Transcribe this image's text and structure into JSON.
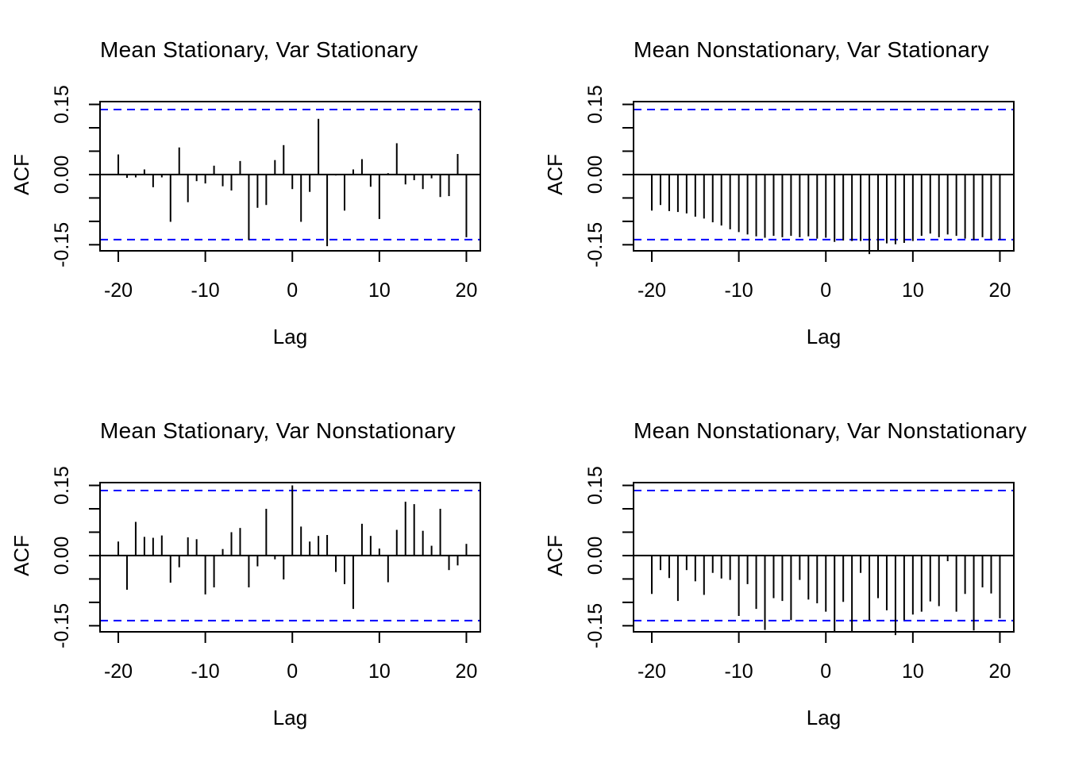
{
  "figure": {
    "rows": 2,
    "cols": 2,
    "colors": {
      "background": "#ffffff",
      "axis": "#000000",
      "bars": "#000000",
      "confidence_band": "#0000ff",
      "text": "#000000"
    }
  },
  "chart_data": {
    "type": "bar",
    "subtype": "autocorrelation-function",
    "layout": "2x2-grid",
    "grid": false,
    "xlabel": "Lag",
    "ylabel": "ACF",
    "xlim": [
      -22.1,
      21.6
    ],
    "ylim": [
      -0.163,
      0.156
    ],
    "confidence_bounds": [
      -0.139,
      0.139
    ],
    "confidence_line_style": "dashed",
    "x_ticks": [
      {
        "value": -20,
        "label": "-20"
      },
      {
        "value": -10,
        "label": "-10"
      },
      {
        "value": 0,
        "label": "0"
      },
      {
        "value": 10,
        "label": "10"
      },
      {
        "value": 20,
        "label": "20"
      }
    ],
    "y_ticks": [
      {
        "value": 0.15,
        "label": "0.15"
      },
      {
        "value": 0.1,
        "label": ""
      },
      {
        "value": 0.05,
        "label": ""
      },
      {
        "value": 0.0,
        "label": "0.00"
      },
      {
        "value": -0.05,
        "label": ""
      },
      {
        "value": -0.1,
        "label": ""
      },
      {
        "value": -0.15,
        "label": "-0.15"
      }
    ],
    "lags": [
      -20,
      -19,
      -18,
      -17,
      -16,
      -15,
      -14,
      -13,
      -12,
      -11,
      -10,
      -9,
      -8,
      -7,
      -6,
      -5,
      -4,
      -3,
      -2,
      -1,
      0,
      1,
      2,
      3,
      4,
      5,
      6,
      7,
      8,
      9,
      10,
      11,
      12,
      13,
      14,
      15,
      16,
      17,
      18,
      19,
      20
    ],
    "panels": [
      {
        "position": "top-left",
        "title": "Mean Stationary, Var Stationary",
        "values": [
          0.043,
          -0.007,
          -0.006,
          0.011,
          -0.027,
          -0.006,
          -0.101,
          0.058,
          -0.059,
          -0.014,
          -0.019,
          0.019,
          -0.025,
          -0.034,
          0.029,
          -0.14,
          -0.071,
          -0.065,
          0.031,
          0.063,
          -0.031,
          -0.101,
          -0.037,
          0.119,
          -0.153,
          -0.002,
          -0.077,
          0.011,
          0.033,
          -0.026,
          -0.095,
          0.003,
          0.067,
          -0.021,
          -0.012,
          -0.031,
          -0.008,
          -0.048,
          -0.046,
          0.044,
          -0.134
        ]
      },
      {
        "position": "top-right",
        "title": "Mean Nonstationary, Var Stationary",
        "values": [
          -0.077,
          -0.065,
          -0.078,
          -0.08,
          -0.083,
          -0.09,
          -0.094,
          -0.102,
          -0.109,
          -0.117,
          -0.123,
          -0.128,
          -0.132,
          -0.135,
          -0.131,
          -0.134,
          -0.131,
          -0.134,
          -0.132,
          -0.137,
          -0.135,
          -0.144,
          -0.141,
          -0.142,
          -0.142,
          -0.17,
          -0.163,
          -0.147,
          -0.149,
          -0.146,
          -0.142,
          -0.131,
          -0.126,
          -0.134,
          -0.128,
          -0.131,
          -0.137,
          -0.14,
          -0.134,
          -0.139,
          -0.139
        ]
      },
      {
        "position": "bottom-left",
        "title": "Mean Stationary, Var Nonstationary",
        "values": [
          0.03,
          -0.073,
          0.072,
          0.04,
          0.038,
          0.043,
          -0.058,
          -0.025,
          0.039,
          0.035,
          -0.083,
          -0.068,
          0.014,
          0.05,
          0.059,
          -0.068,
          -0.023,
          0.1,
          -0.008,
          -0.051,
          0.15,
          0.062,
          0.03,
          0.042,
          0.044,
          -0.035,
          -0.061,
          -0.114,
          0.068,
          0.042,
          0.015,
          -0.057,
          0.055,
          0.115,
          0.11,
          0.053,
          0.021,
          0.1,
          -0.031,
          -0.021,
          0.025
        ]
      },
      {
        "position": "bottom-right",
        "title": "Mean Nonstationary, Var Nonstationary",
        "values": [
          -0.082,
          -0.031,
          -0.048,
          -0.097,
          -0.031,
          -0.055,
          -0.084,
          -0.037,
          -0.049,
          -0.052,
          -0.129,
          -0.061,
          -0.114,
          -0.159,
          -0.091,
          -0.097,
          -0.138,
          -0.052,
          -0.094,
          -0.102,
          -0.12,
          -0.162,
          -0.099,
          -0.164,
          -0.037,
          -0.138,
          -0.091,
          -0.117,
          -0.17,
          -0.138,
          -0.126,
          -0.12,
          -0.098,
          -0.108,
          -0.012,
          -0.12,
          -0.082,
          -0.16,
          -0.068,
          -0.081,
          -0.134
        ]
      }
    ]
  }
}
